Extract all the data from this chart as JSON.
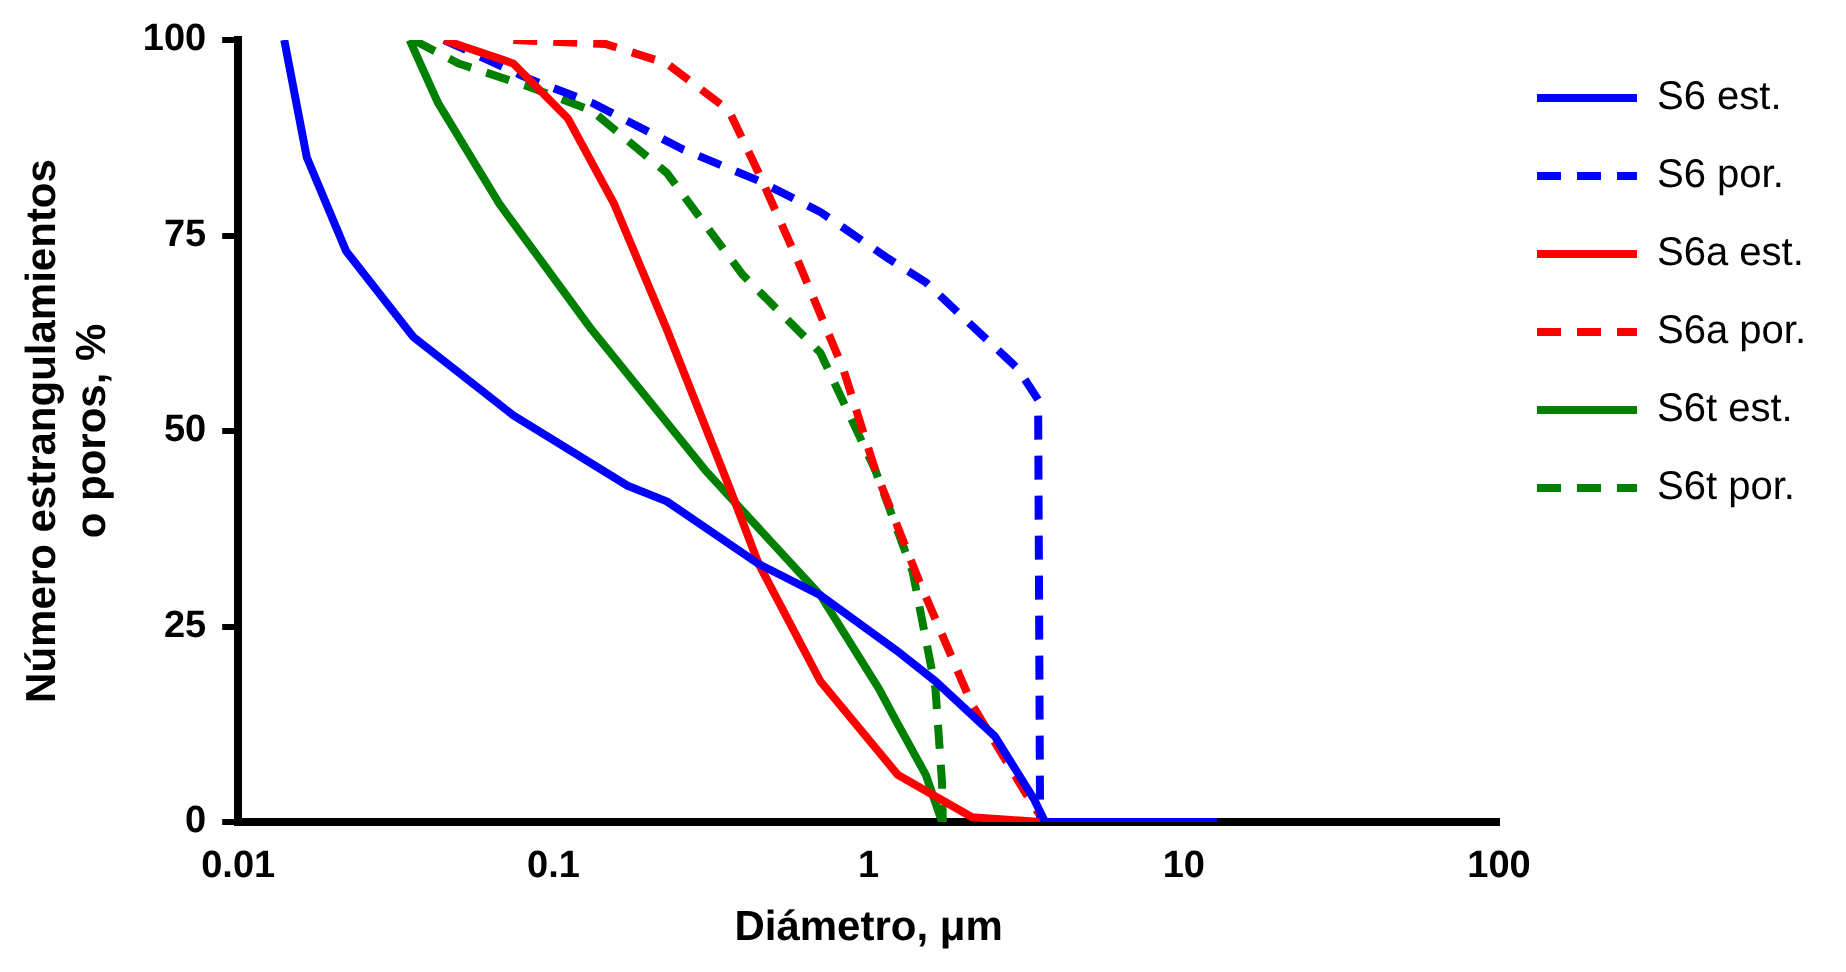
{
  "chart_data": {
    "type": "line",
    "xlabel": "Diámetro, μm",
    "ylabel": "Número estrangulamientos\no poros, %",
    "log": "x",
    "xlim": [
      0.01,
      100
    ],
    "xticks": [
      0.01,
      0.1,
      1,
      10,
      100
    ],
    "ylim": [
      0,
      100
    ],
    "yticks": [
      0,
      25,
      50,
      75,
      100
    ],
    "grid": false,
    "legend": "right",
    "marker": "none",
    "series": [
      {
        "name": "S6 est.",
        "color": "#0000ff",
        "line_style": "solid",
        "x": [
          0.014,
          0.0165,
          0.022,
          0.036,
          0.0746,
          0.172,
          0.229,
          0.448,
          0.703,
          1.22,
          1.63,
          2.51,
          3.34,
          3.63,
          5,
          10,
          12.7
        ],
        "values": [
          100,
          85,
          73,
          62,
          52,
          43,
          41,
          33,
          29,
          22,
          18,
          11,
          3,
          0,
          0,
          0,
          0
        ]
      },
      {
        "name": "S6 por.",
        "color": "#0000ff",
        "line_style": "dashed",
        "x": [
          0.045,
          0.084,
          0.132,
          0.258,
          0.448,
          0.703,
          1.16,
          1.52,
          2.97,
          3.45,
          3.5,
          5,
          10,
          12.7
        ],
        "values": [
          100,
          95,
          92,
          86,
          82,
          78,
          72,
          69,
          58,
          54,
          0,
          0,
          0,
          0
        ]
      },
      {
        "name": "S6a est.",
        "color": "#ff0000",
        "line_style": "solid",
        "x": [
          0.045,
          0.0746,
          0.111,
          0.156,
          0.229,
          0.36,
          0.448,
          0.703,
          1.24,
          2.13,
          3.5,
          5.2
        ],
        "values": [
          100,
          97,
          90,
          79,
          63,
          43,
          33,
          18,
          6,
          0.6,
          0,
          0
        ]
      },
      {
        "name": "S6a por.",
        "color": "#ff0000",
        "line_style": "dashed",
        "x": [
          0.0746,
          0.146,
          0.229,
          0.36,
          0.448,
          0.593,
          0.83,
          1.05,
          1.44,
          2.13,
          3.34,
          3.63
        ],
        "values": [
          100,
          99.5,
          97,
          91,
          83,
          72,
          58,
          45,
          31,
          15,
          2,
          0
        ]
      },
      {
        "name": "S6t est.",
        "color": "#008000",
        "line_style": "solid",
        "x": [
          0.035,
          0.043,
          0.0675,
          0.132,
          0.303,
          0.703,
          1.08,
          1.22,
          1.52,
          1.71
        ],
        "values": [
          100,
          92,
          79,
          63,
          45,
          29,
          17,
          13,
          6,
          0
        ]
      },
      {
        "name": "S6t por.",
        "color": "#008000",
        "line_style": "dashed",
        "x": [
          0.036,
          0.05,
          0.084,
          0.132,
          0.229,
          0.398,
          0.703,
          1.05,
          1.38,
          1.63,
          1.71,
          1.72
        ],
        "values": [
          100,
          97,
          94,
          91,
          83,
          70,
          60,
          45,
          32,
          17,
          5,
          0
        ]
      }
    ]
  }
}
